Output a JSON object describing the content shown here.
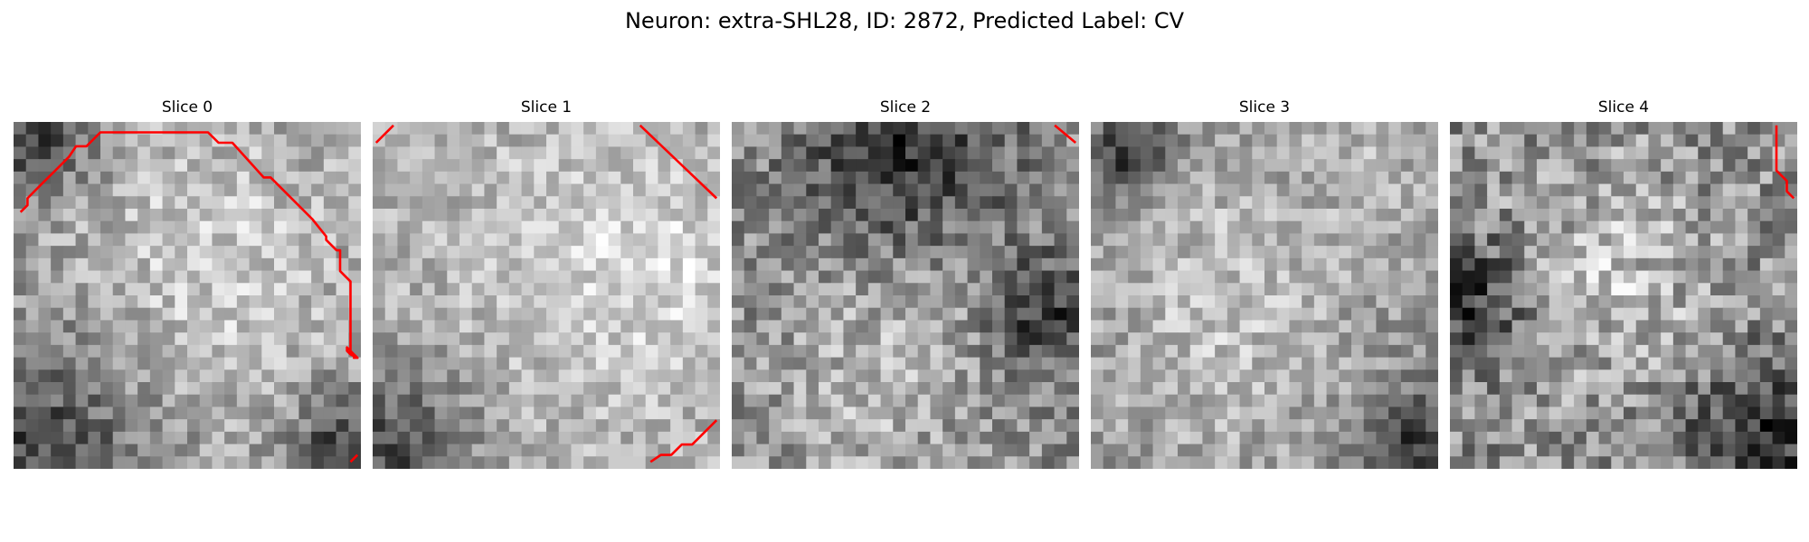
{
  "figure": {
    "title": "Neuron: extra-SHL28, ID: 2872, Predicted Label: CV"
  },
  "colors": {
    "contour": "#ff0000",
    "colormap": "gray"
  },
  "panels": [
    {
      "title": "Slice 0",
      "seed": 11,
      "mean": 158,
      "contrast": 1.0,
      "bright": [
        [
          0.5,
          0.6,
          0.35
        ],
        [
          0.6,
          0.3,
          0.25
        ]
      ],
      "dark": [
        [
          0.05,
          0.95,
          0.25
        ],
        [
          0.05,
          0.05,
          0.12
        ],
        [
          0.95,
          0.95,
          0.12
        ]
      ]
    },
    {
      "title": "Slice 1",
      "seed": 23,
      "mean": 170,
      "contrast": 0.9,
      "bright": [
        [
          0.6,
          0.45,
          0.35
        ],
        [
          0.85,
          0.4,
          0.2
        ]
      ],
      "dark": [
        [
          0.05,
          0.95,
          0.18
        ]
      ]
    },
    {
      "title": "Slice 2",
      "seed": 37,
      "mean": 140,
      "contrast": 1.15,
      "bright": [
        [
          0.55,
          0.55,
          0.25
        ],
        [
          0.35,
          0.8,
          0.2
        ]
      ],
      "dark": [
        [
          0.9,
          0.55,
          0.12
        ],
        [
          0.5,
          0.1,
          0.2
        ]
      ]
    },
    {
      "title": "Slice 3",
      "seed": 41,
      "mean": 150,
      "contrast": 0.95,
      "bright": [
        [
          0.35,
          0.35,
          0.25
        ],
        [
          0.4,
          0.7,
          0.25
        ],
        [
          0.85,
          0.15,
          0.15
        ]
      ],
      "dark": [
        [
          0.95,
          0.95,
          0.12
        ],
        [
          0.1,
          0.1,
          0.1
        ]
      ]
    },
    {
      "title": "Slice 4",
      "seed": 53,
      "mean": 142,
      "contrast": 1.3,
      "bright": [
        [
          0.45,
          0.35,
          0.2
        ],
        [
          0.5,
          0.55,
          0.2
        ]
      ],
      "dark": [
        [
          0.9,
          0.9,
          0.15
        ],
        [
          0.05,
          0.5,
          0.12
        ]
      ]
    }
  ],
  "contours": [
    [
      [
        [
          0.02,
          0.26
        ],
        [
          0.04,
          0.24
        ],
        [
          0.04,
          0.22
        ],
        [
          0.08,
          0.18
        ],
        [
          0.12,
          0.14
        ],
        [
          0.16,
          0.1
        ],
        [
          0.18,
          0.07
        ],
        [
          0.21,
          0.07
        ],
        [
          0.25,
          0.03
        ],
        [
          0.56,
          0.03
        ],
        [
          0.59,
          0.06
        ],
        [
          0.63,
          0.06
        ],
        [
          0.72,
          0.16
        ],
        [
          0.74,
          0.16
        ],
        [
          0.86,
          0.28
        ],
        [
          0.9,
          0.33
        ],
        [
          0.9,
          0.34
        ],
        [
          0.93,
          0.37
        ],
        [
          0.94,
          0.37
        ],
        [
          0.94,
          0.43
        ],
        [
          0.97,
          0.46
        ],
        [
          0.97,
          0.66
        ],
        [
          0.97,
          0.67
        ],
        [
          0.98,
          0.67
        ],
        [
          0.98,
          0.67
        ],
        [
          0.97,
          0.66
        ],
        [
          0.98,
          0.67
        ],
        [
          0.98,
          0.68
        ],
        [
          0.99,
          0.68
        ],
        [
          0.98,
          0.67
        ],
        [
          0.99,
          0.68
        ],
        [
          0.97,
          0.67
        ],
        [
          0.96,
          0.66
        ],
        [
          0.96,
          0.65
        ],
        [
          0.97,
          0.66
        ],
        [
          0.97,
          0.67
        ],
        [
          0.98,
          0.67
        ],
        [
          0.99,
          0.68
        ]
      ],
      [
        [
          0.97,
          0.98
        ],
        [
          0.99,
          0.96
        ]
      ]
    ],
    [
      [
        [
          0.01,
          0.06
        ],
        [
          0.06,
          0.01
        ]
      ],
      [
        [
          0.77,
          0.01
        ],
        [
          0.99,
          0.22
        ]
      ],
      [
        [
          0.8,
          0.98
        ],
        [
          0.83,
          0.96
        ],
        [
          0.86,
          0.96
        ],
        [
          0.89,
          0.93
        ],
        [
          0.92,
          0.93
        ],
        [
          0.99,
          0.86
        ]
      ]
    ],
    [
      [
        [
          0.93,
          0.01
        ],
        [
          0.99,
          0.06
        ]
      ]
    ],
    [],
    [
      [
        [
          0.94,
          0.01
        ],
        [
          0.94,
          0.14
        ],
        [
          0.97,
          0.17
        ],
        [
          0.97,
          0.2
        ],
        [
          0.99,
          0.22
        ]
      ]
    ]
  ]
}
